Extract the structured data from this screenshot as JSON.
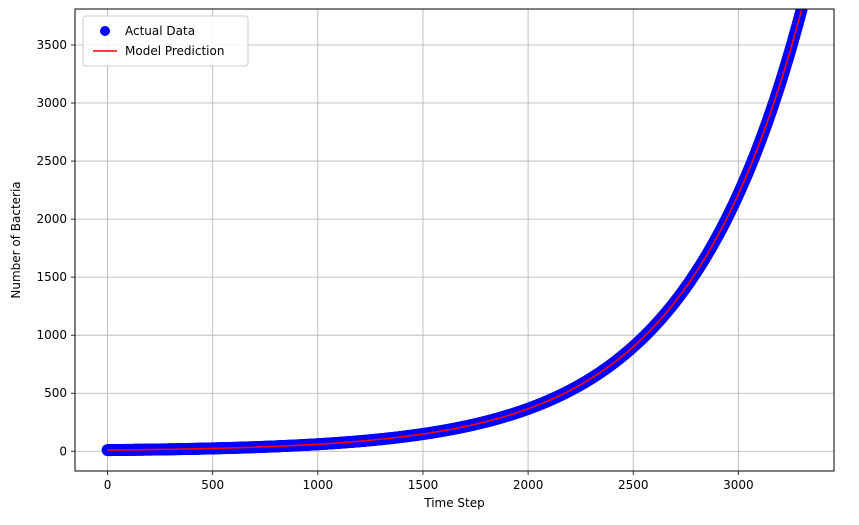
{
  "chart_data": {
    "type": "scatter",
    "title": "",
    "xlabel": "Time Step",
    "ylabel": "Number of Bacteria",
    "xlim": [
      -155,
      3455
    ],
    "ylim": [
      -170,
      3810
    ],
    "xticks": [
      0,
      500,
      1000,
      1500,
      2000,
      2500,
      3000
    ],
    "yticks": [
      0,
      500,
      1000,
      1500,
      2000,
      2500,
      3000,
      3500
    ],
    "grid": true,
    "legend_position": "top-left",
    "x_range": [
      0,
      3300
    ],
    "model": {
      "form": "exponential",
      "initial_value": 10.0,
      "growth_rate": 0.0018
    },
    "series": [
      {
        "name": "Actual Data",
        "kind": "scatter",
        "color": "#0000ff",
        "sample_points": [
          [
            0,
            10
          ],
          [
            500,
            25
          ],
          [
            1000,
            60
          ],
          [
            1500,
            150
          ],
          [
            2000,
            370
          ],
          [
            2500,
            910
          ],
          [
            3000,
            2230
          ],
          [
            3300,
            3750
          ]
        ]
      },
      {
        "name": "Model Prediction",
        "kind": "line",
        "color": "#ff0000"
      }
    ]
  }
}
